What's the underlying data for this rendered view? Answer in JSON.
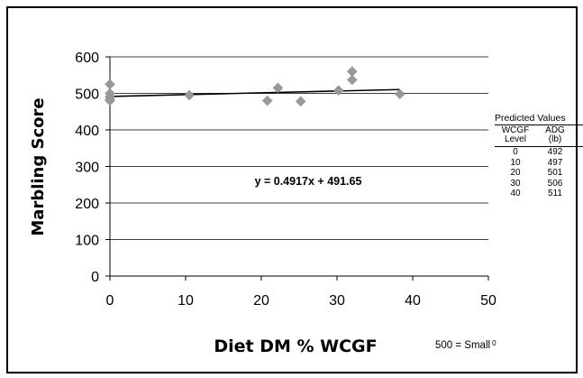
{
  "chart_data": {
    "type": "scatter",
    "xlabel": "Diet DM % WCGF",
    "ylabel": "Marbling Score",
    "xlim": [
      0,
      50
    ],
    "ylim": [
      0,
      600
    ],
    "xticks": [
      "0",
      "10",
      "20",
      "30",
      "40",
      "50"
    ],
    "yticks": [
      "0",
      "100",
      "200",
      "300",
      "400",
      "500",
      "600"
    ],
    "grid": "horizontal",
    "marker_color": "#999999",
    "points": [
      {
        "x": 0,
        "y": 525
      },
      {
        "x": 0,
        "y": 500
      },
      {
        "x": 0,
        "y": 490
      },
      {
        "x": 0,
        "y": 483
      },
      {
        "x": 0,
        "y": 480
      },
      {
        "x": 10.5,
        "y": 495
      },
      {
        "x": 20.8,
        "y": 480
      },
      {
        "x": 22.2,
        "y": 515
      },
      {
        "x": 25.2,
        "y": 478
      },
      {
        "x": 30.2,
        "y": 508
      },
      {
        "x": 32,
        "y": 560
      },
      {
        "x": 32,
        "y": 537
      },
      {
        "x": 38.3,
        "y": 498
      }
    ],
    "trendline": {
      "slope": 0.4917,
      "intercept": 491.65,
      "x_range": [
        0,
        38.3
      ]
    },
    "equation": "y = 0.4917x + 491.65"
  },
  "table": {
    "title": "Predicted Values",
    "col1_header": [
      "WCGF",
      "Level"
    ],
    "col2_header": [
      "ADG",
      "(lb)"
    ],
    "rows": [
      {
        "level": "0",
        "adg": "492"
      },
      {
        "level": "10",
        "adg": "497"
      },
      {
        "level": "20",
        "adg": "501"
      },
      {
        "level": "30",
        "adg": "506"
      },
      {
        "level": "40",
        "adg": "511"
      }
    ]
  },
  "note": {
    "text": "500 = Small",
    "superscript": "0"
  }
}
